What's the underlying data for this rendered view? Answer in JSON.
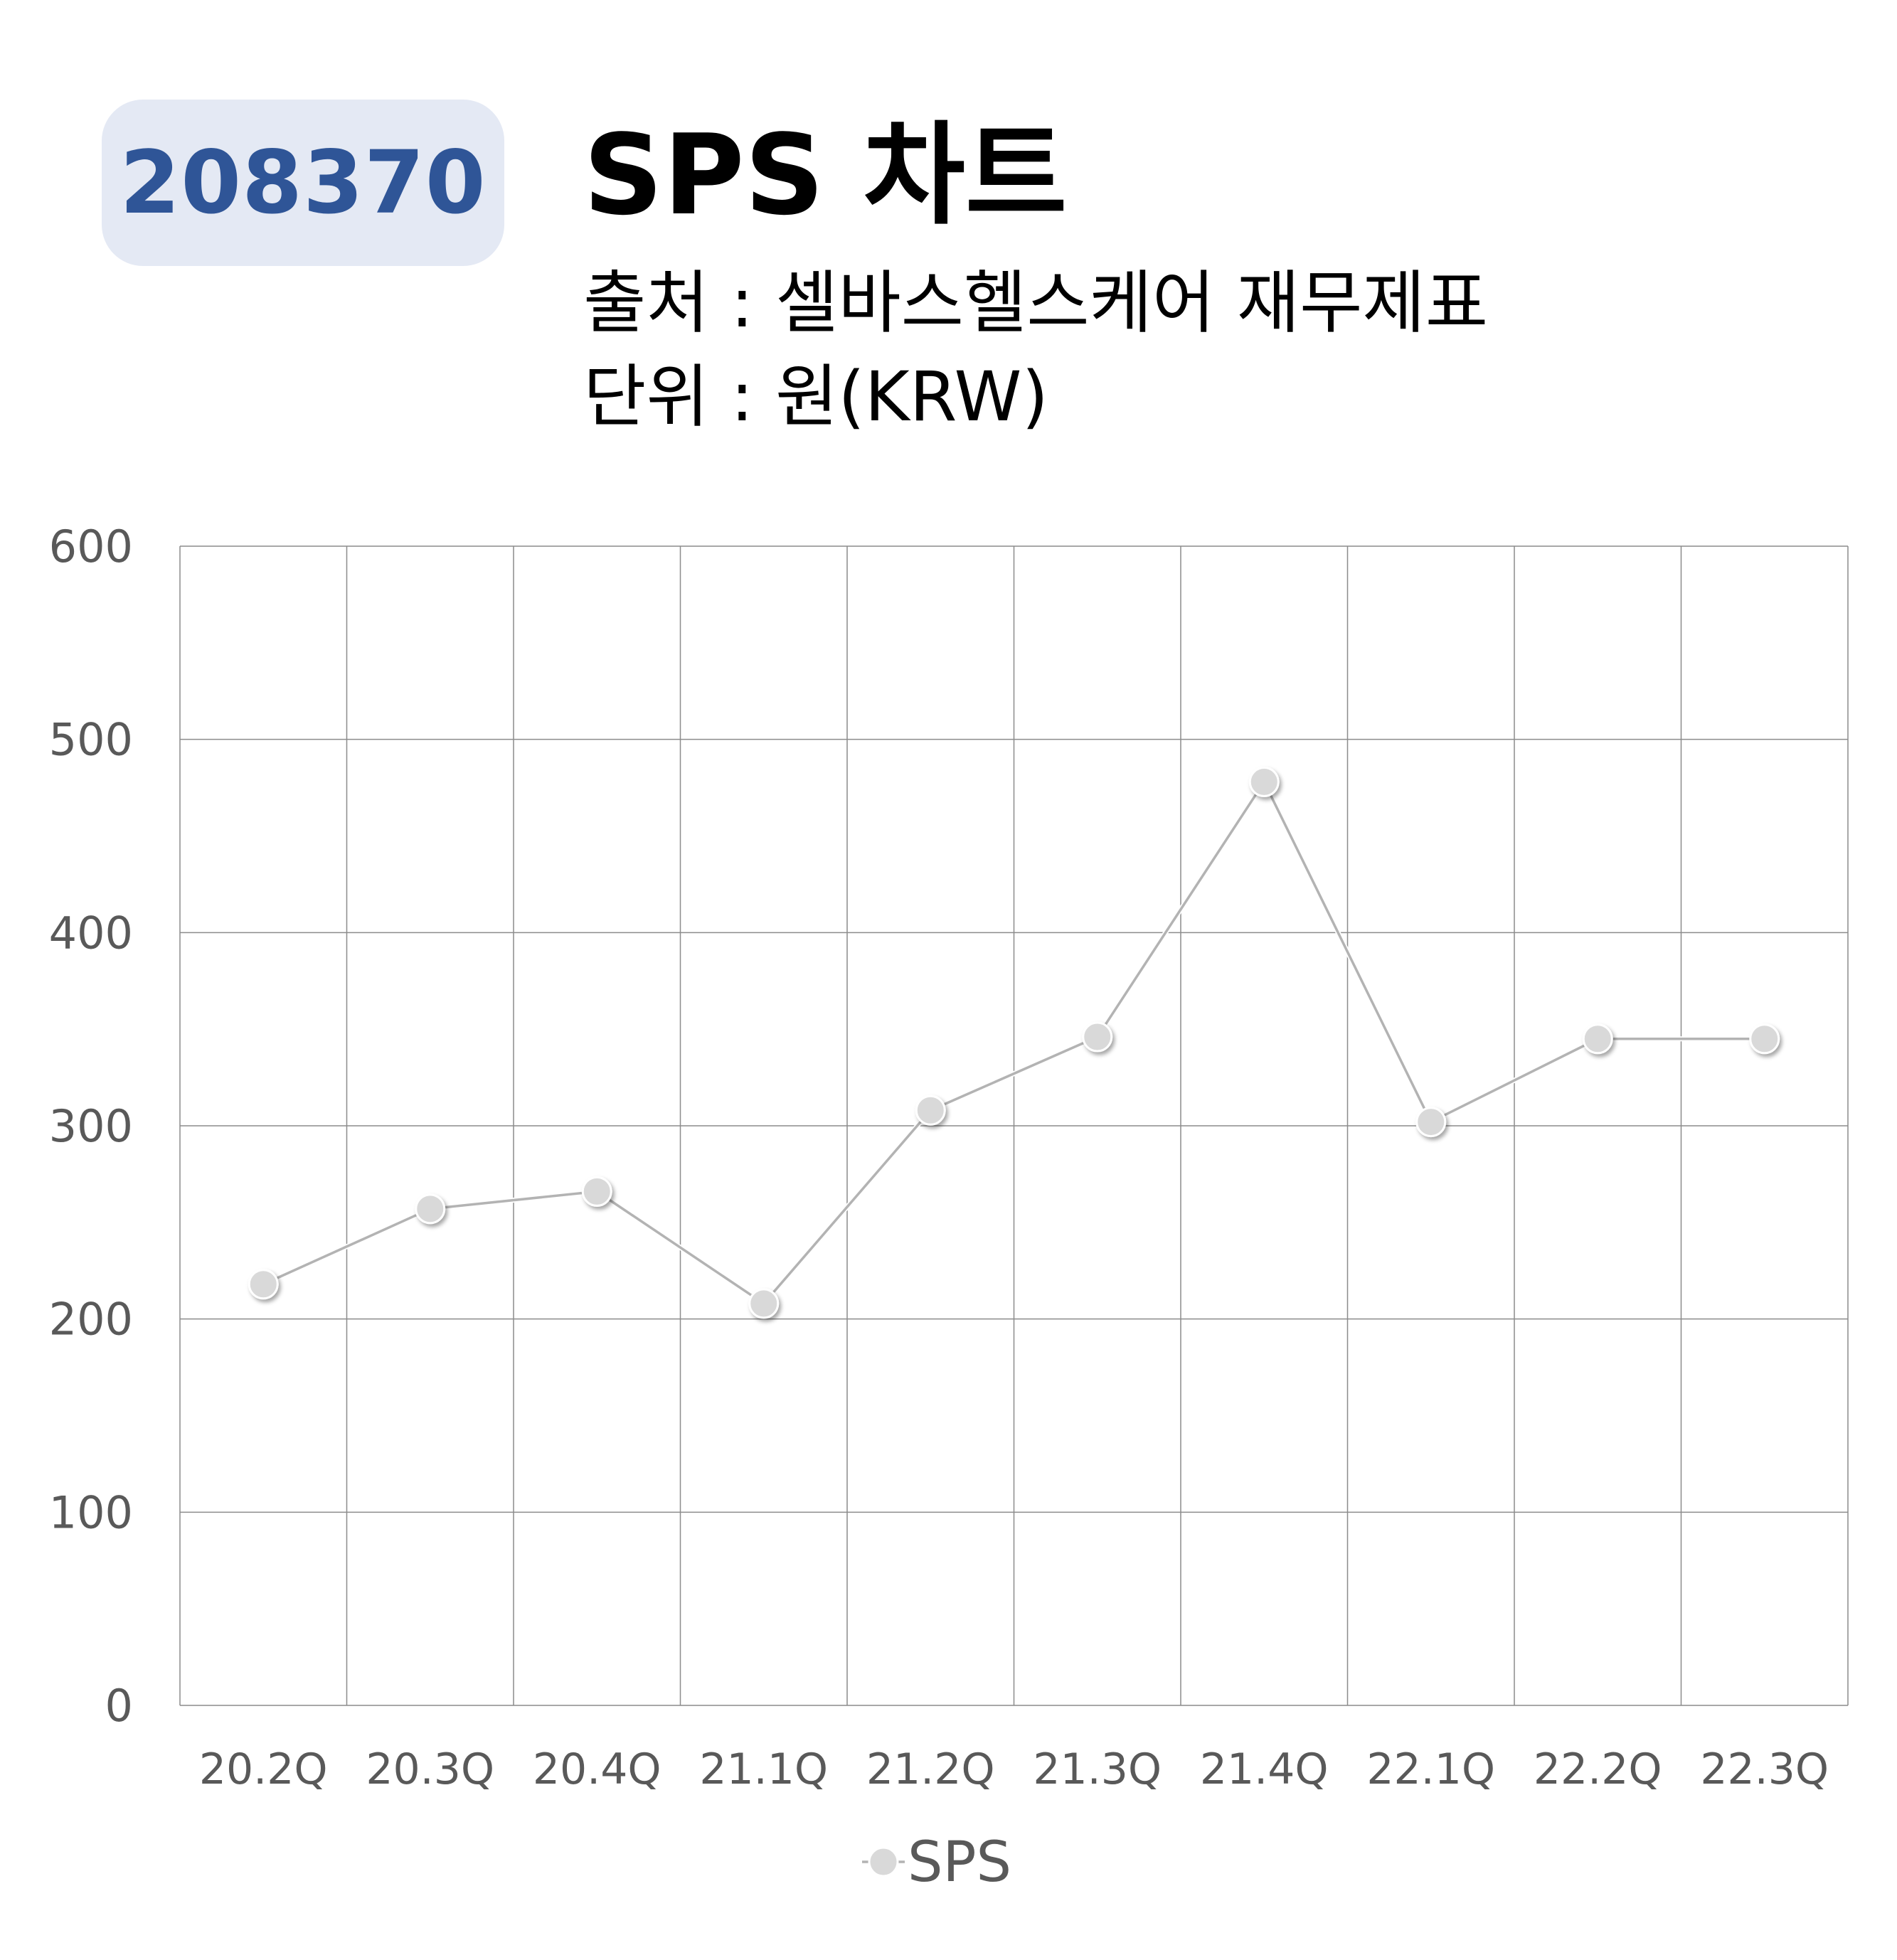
{
  "header": {
    "code": "208370",
    "title": "SPS 차트",
    "source": "출처 : 셀바스헬스케어 재무제표",
    "unit": "단위 : 원(KRW)"
  },
  "colors": {
    "badge_bg": "#e4e9f4",
    "badge_text": "#2f5597",
    "series_line": "#b3b3b3",
    "marker_fill": "#d9d9d9",
    "grid": "#8c8c8c",
    "axis_text": "#595959"
  },
  "chart_data": {
    "type": "line",
    "categories": [
      "20.2Q",
      "20.3Q",
      "20.4Q",
      "21.1Q",
      "21.2Q",
      "21.3Q",
      "21.4Q",
      "22.1Q",
      "22.2Q",
      "22.3Q"
    ],
    "series": [
      {
        "name": "SPS",
        "values": [
          218,
          257,
          266,
          208,
          308,
          346,
          478,
          302,
          345,
          345
        ]
      }
    ],
    "ylim": [
      0,
      600
    ],
    "yticks": [
      0,
      100,
      200,
      300,
      400,
      500,
      600
    ],
    "grid": true,
    "legend": "bottom-center"
  }
}
